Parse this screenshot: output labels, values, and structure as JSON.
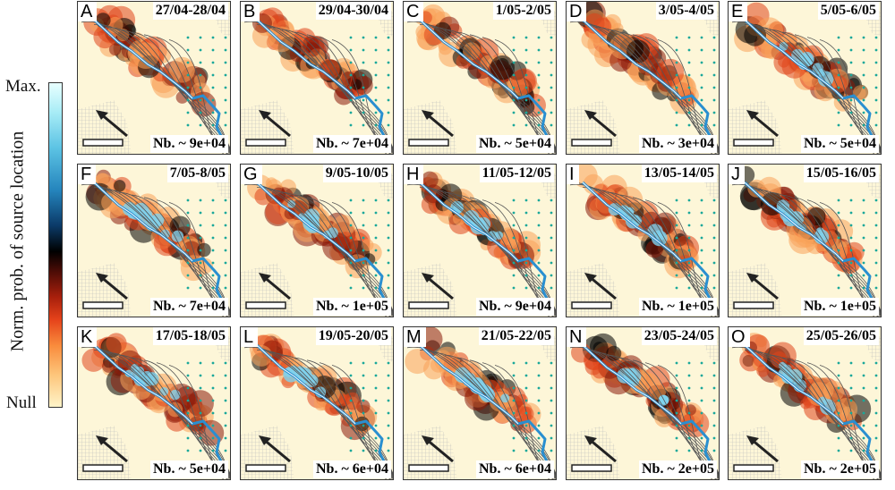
{
  "colorbar": {
    "max_label": "Max.",
    "null_label": "Null",
    "title": "Norm. prob. of source location"
  },
  "panels": [
    {
      "letter": "A",
      "date": "27/04-28/04",
      "count": "Nb. ~ 9e+04"
    },
    {
      "letter": "B",
      "date": "29/04-30/04",
      "count": "Nb. ~ 7e+04"
    },
    {
      "letter": "C",
      "date": "1/05-2/05",
      "count": "Nb. ~ 5e+04"
    },
    {
      "letter": "D",
      "date": "3/05-4/05",
      "count": "Nb. ~ 3e+04"
    },
    {
      "letter": "E",
      "date": "5/05-6/05",
      "count": "Nb. ~ 5e+04"
    },
    {
      "letter": "F",
      "date": "7/05-8/05",
      "count": "Nb. ~ 7e+04"
    },
    {
      "letter": "G",
      "date": "9/05-10/05",
      "count": "Nb. ~ 1e+05"
    },
    {
      "letter": "H",
      "date": "11/05-12/05",
      "count": "Nb. ~ 9e+04"
    },
    {
      "letter": "I",
      "date": "13/05-14/05",
      "count": "Nb. ~ 1e+05"
    },
    {
      "letter": "J",
      "date": "15/05-16/05",
      "count": "Nb. ~ 1e+05"
    },
    {
      "letter": "K",
      "date": "17/05-18/05",
      "count": "Nb. ~ 5e+04"
    },
    {
      "letter": "L",
      "date": "19/05-20/05",
      "count": "Nb. ~ 6e+04"
    },
    {
      "letter": "M",
      "date": "21/05-22/05",
      "count": "Nb. ~ 6e+04"
    },
    {
      "letter": "N",
      "date": "23/05-24/05",
      "count": "Nb. ~ 2e+05"
    },
    {
      "letter": "O",
      "date": "25/05-26/05",
      "count": "Nb. ~ 2e+05"
    }
  ],
  "colors": {
    "river": "#2a8fd0",
    "station": "#1aa89a",
    "contour": "#555555",
    "background": "#fdf6d8"
  }
}
